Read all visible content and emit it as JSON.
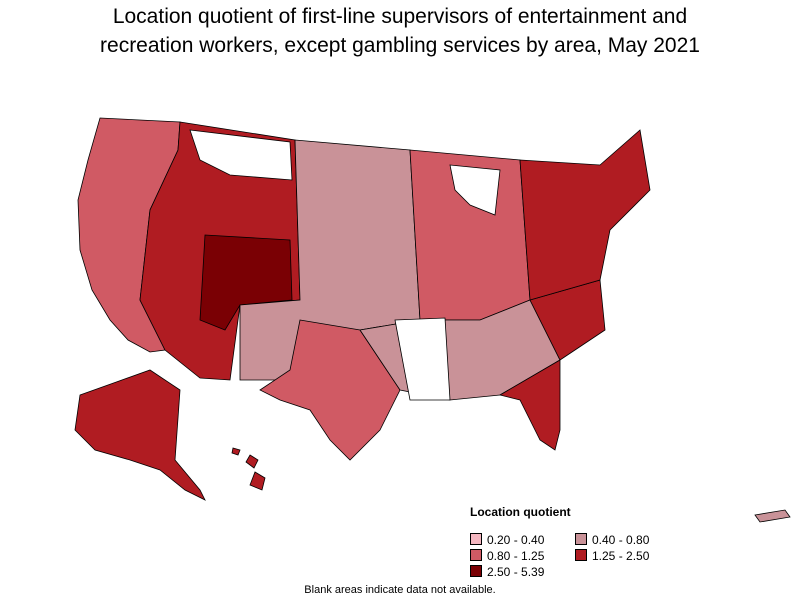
{
  "title_line1": "Location quotient of first-line supervisors of entertainment and",
  "title_line2": "recreation workers, except gambling services by area, May 2021",
  "legend": {
    "title": "Location quotient",
    "items": [
      {
        "label": "0.20 - 0.40",
        "color": "#f4b6c0"
      },
      {
        "label": "0.40 - 0.80",
        "color": "#c99298"
      },
      {
        "label": "0.80 - 1.25",
        "color": "#d05a64"
      },
      {
        "label": "1.25 - 2.50",
        "color": "#b01c22"
      },
      {
        "label": "2.50 - 5.39",
        "color": "#7a0004"
      }
    ]
  },
  "note": "Blank areas indicate data not available.",
  "colors": {
    "border": "#000000",
    "no_data": "#ffffff"
  }
}
